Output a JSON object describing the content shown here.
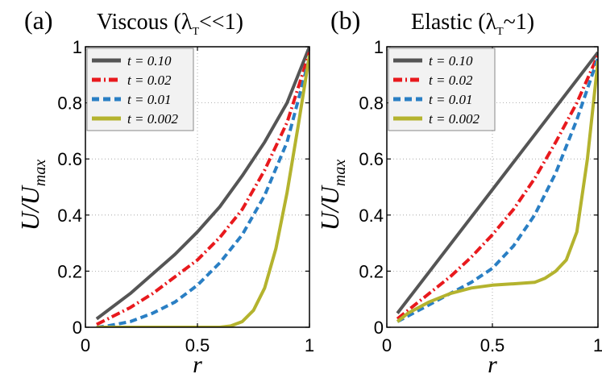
{
  "chart_data": [
    {
      "type": "line",
      "panel_label": "(a)",
      "title_main": "Viscous (λ",
      "title_sub": "T",
      "title_tail": "<<1)",
      "xlabel": "r",
      "ylabel_main": "U/U",
      "ylabel_sub": "max",
      "xlim": [
        0,
        1
      ],
      "ylim": [
        0,
        1
      ],
      "x_ticks": [
        0,
        0.5,
        1
      ],
      "x_tick_labels": [
        "0",
        "0.5",
        "1"
      ],
      "y_ticks": [
        0,
        0.2,
        0.4,
        0.6,
        0.8,
        1
      ],
      "y_tick_labels": [
        "0",
        "0.2",
        "0.4",
        "0.6",
        "0.8",
        "1"
      ],
      "grid": true,
      "legend_position": "top-left",
      "series": [
        {
          "name": "t = 0.10",
          "color": "#555555",
          "dash": "solid",
          "x": [
            0.05,
            0.1,
            0.2,
            0.3,
            0.4,
            0.5,
            0.6,
            0.7,
            0.8,
            0.9,
            1.0
          ],
          "y": [
            0.03,
            0.06,
            0.12,
            0.19,
            0.26,
            0.34,
            0.43,
            0.54,
            0.66,
            0.8,
            1.0
          ]
        },
        {
          "name": "t = 0.02",
          "color": "#e8191d",
          "dash": "dashdot",
          "x": [
            0.05,
            0.1,
            0.2,
            0.3,
            0.4,
            0.5,
            0.6,
            0.7,
            0.8,
            0.9,
            1.0
          ],
          "y": [
            0.01,
            0.03,
            0.07,
            0.12,
            0.18,
            0.24,
            0.32,
            0.42,
            0.56,
            0.73,
            0.98
          ]
        },
        {
          "name": "t = 0.01",
          "color": "#2a7fc4",
          "dash": "dashed",
          "x": [
            0.05,
            0.1,
            0.2,
            0.3,
            0.4,
            0.5,
            0.6,
            0.7,
            0.8,
            0.9,
            1.0
          ],
          "y": [
            0.0,
            0.005,
            0.02,
            0.05,
            0.09,
            0.15,
            0.23,
            0.33,
            0.47,
            0.66,
            0.96
          ]
        },
        {
          "name": "t = 0.002",
          "color": "#b4b32e",
          "dash": "solid",
          "x": [
            0.05,
            0.2,
            0.4,
            0.55,
            0.6,
            0.65,
            0.7,
            0.75,
            0.8,
            0.85,
            0.9,
            0.95,
            1.0
          ],
          "y": [
            0.0,
            0.0,
            0.0,
            0.0,
            0.0,
            0.005,
            0.02,
            0.06,
            0.14,
            0.28,
            0.48,
            0.72,
            0.97
          ]
        }
      ]
    },
    {
      "type": "line",
      "panel_label": "(b)",
      "title_main": "Elastic (λ",
      "title_sub": "T",
      "title_tail": "~1)",
      "xlabel": "r",
      "ylabel_main": "U/U",
      "ylabel_sub": "max",
      "xlim": [
        0,
        1
      ],
      "ylim": [
        0,
        1
      ],
      "x_ticks": [
        0,
        0.5,
        1
      ],
      "x_tick_labels": [
        "0",
        "0.5",
        "1"
      ],
      "y_ticks": [
        0,
        0.2,
        0.4,
        0.6,
        0.8,
        1
      ],
      "y_tick_labels": [
        "0",
        "0.2",
        "0.4",
        "0.6",
        "0.8",
        "1"
      ],
      "grid": true,
      "legend_position": "top-left",
      "series": [
        {
          "name": "t = 0.10",
          "color": "#555555",
          "dash": "solid",
          "x": [
            0.05,
            1.0
          ],
          "y": [
            0.05,
            0.98
          ]
        },
        {
          "name": "t = 0.02",
          "color": "#e8191d",
          "dash": "dashdot",
          "x": [
            0.05,
            0.1,
            0.2,
            0.3,
            0.4,
            0.5,
            0.6,
            0.7,
            0.8,
            0.9,
            1.0
          ],
          "y": [
            0.03,
            0.06,
            0.12,
            0.18,
            0.25,
            0.33,
            0.42,
            0.53,
            0.66,
            0.8,
            0.97
          ]
        },
        {
          "name": "t = 0.01",
          "color": "#2a7fc4",
          "dash": "dashed",
          "x": [
            0.05,
            0.1,
            0.2,
            0.3,
            0.4,
            0.5,
            0.6,
            0.7,
            0.8,
            0.9,
            1.0
          ],
          "y": [
            0.02,
            0.04,
            0.08,
            0.12,
            0.16,
            0.21,
            0.29,
            0.4,
            0.55,
            0.74,
            0.96
          ]
        },
        {
          "name": "t = 0.002",
          "color": "#b4b32e",
          "dash": "solid",
          "x": [
            0.05,
            0.1,
            0.2,
            0.3,
            0.4,
            0.5,
            0.6,
            0.7,
            0.75,
            0.8,
            0.85,
            0.9,
            0.95,
            1.0
          ],
          "y": [
            0.02,
            0.05,
            0.09,
            0.12,
            0.14,
            0.15,
            0.155,
            0.16,
            0.175,
            0.2,
            0.24,
            0.34,
            0.6,
            0.95
          ]
        }
      ]
    }
  ]
}
